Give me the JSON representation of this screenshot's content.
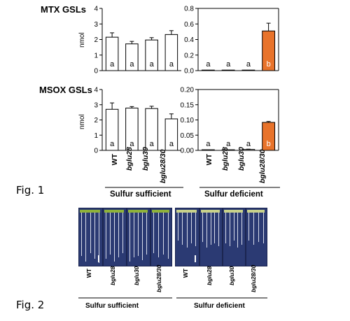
{
  "figure_labels": {
    "fig1": "Fig. 1",
    "fig2": "Fig. 2"
  },
  "chart_data": [
    {
      "type": "bar",
      "title": "MTX GSLs",
      "ylabel": "nmol",
      "condition": "Sulfur sufficient",
      "categories": [
        "WT",
        "bglu28",
        "bglu30",
        "bglu28/30"
      ],
      "values": [
        2.15,
        1.72,
        1.97,
        2.32
      ],
      "errors": [
        0.28,
        0.16,
        0.15,
        0.25
      ],
      "letters": [
        "a",
        "a",
        "a",
        "a"
      ],
      "ylim": [
        0,
        4
      ],
      "yticks": [
        0,
        1,
        2,
        3,
        4
      ],
      "bar_colors": [
        "#ffffff",
        "#ffffff",
        "#ffffff",
        "#ffffff"
      ]
    },
    {
      "type": "bar",
      "title": "",
      "ylabel": "",
      "condition": "Sulfur deficient",
      "categories": [
        "WT",
        "bglu28",
        "bglu30",
        "bglu28/30"
      ],
      "values": [
        0.0,
        0.0,
        0.0,
        0.51
      ],
      "errors": [
        0,
        0,
        0,
        0.1
      ],
      "letters": [
        "a",
        "a",
        "a",
        "b"
      ],
      "ylim": [
        0,
        0.8
      ],
      "yticks": [
        0.0,
        0.2,
        0.4,
        0.6,
        0.8
      ],
      "bar_colors": [
        "#ffffff",
        "#ffffff",
        "#ffffff",
        "#e8732b"
      ]
    },
    {
      "type": "bar",
      "title": "MSOX GSLs",
      "ylabel": "nmol",
      "condition": "Sulfur sufficient",
      "categories": [
        "WT",
        "bglu28",
        "bglu30",
        "bglu28/30"
      ],
      "values": [
        2.7,
        2.78,
        2.75,
        2.07
      ],
      "errors": [
        0.42,
        0.1,
        0.15,
        0.33
      ],
      "letters": [
        "a",
        "a",
        "a",
        "a"
      ],
      "ylim": [
        0,
        4
      ],
      "yticks": [
        0,
        1,
        2,
        3,
        4
      ],
      "bar_colors": [
        "#ffffff",
        "#ffffff",
        "#ffffff",
        "#ffffff"
      ]
    },
    {
      "type": "bar",
      "title": "",
      "ylabel": "",
      "condition": "Sulfur deficient",
      "categories": [
        "WT",
        "bglu28",
        "bglu30",
        "bglu28/30"
      ],
      "values": [
        0.002,
        0.002,
        0.003,
        0.092
      ],
      "errors": [
        0,
        0,
        0.001,
        0.003
      ],
      "letters": [
        "a",
        "a",
        "a",
        "b"
      ],
      "ylim": [
        0,
        0.2
      ],
      "yticks": [
        0.0,
        0.05,
        0.1,
        0.15,
        0.2
      ],
      "bar_colors": [
        "#ffffff",
        "#ffffff",
        "#ffffff",
        "#e8732b"
      ]
    }
  ],
  "fig1_labels": {
    "genotypes": [
      "WT",
      "bglu28",
      "bglu30",
      "bglu28/30"
    ],
    "conditions": [
      "Sulfur sufficient",
      "Sulfur deficient"
    ]
  },
  "fig2_labels": {
    "genotypes": [
      "WT",
      "bglu28",
      "bglu30",
      "bglu28/30"
    ],
    "conditions": [
      "Sulfur sufficient",
      "Sulfur deficient"
    ]
  },
  "colors": {
    "bar_default": "#ffffff",
    "bar_highlight": "#e8732b",
    "photo_background": "#2b3a73"
  }
}
